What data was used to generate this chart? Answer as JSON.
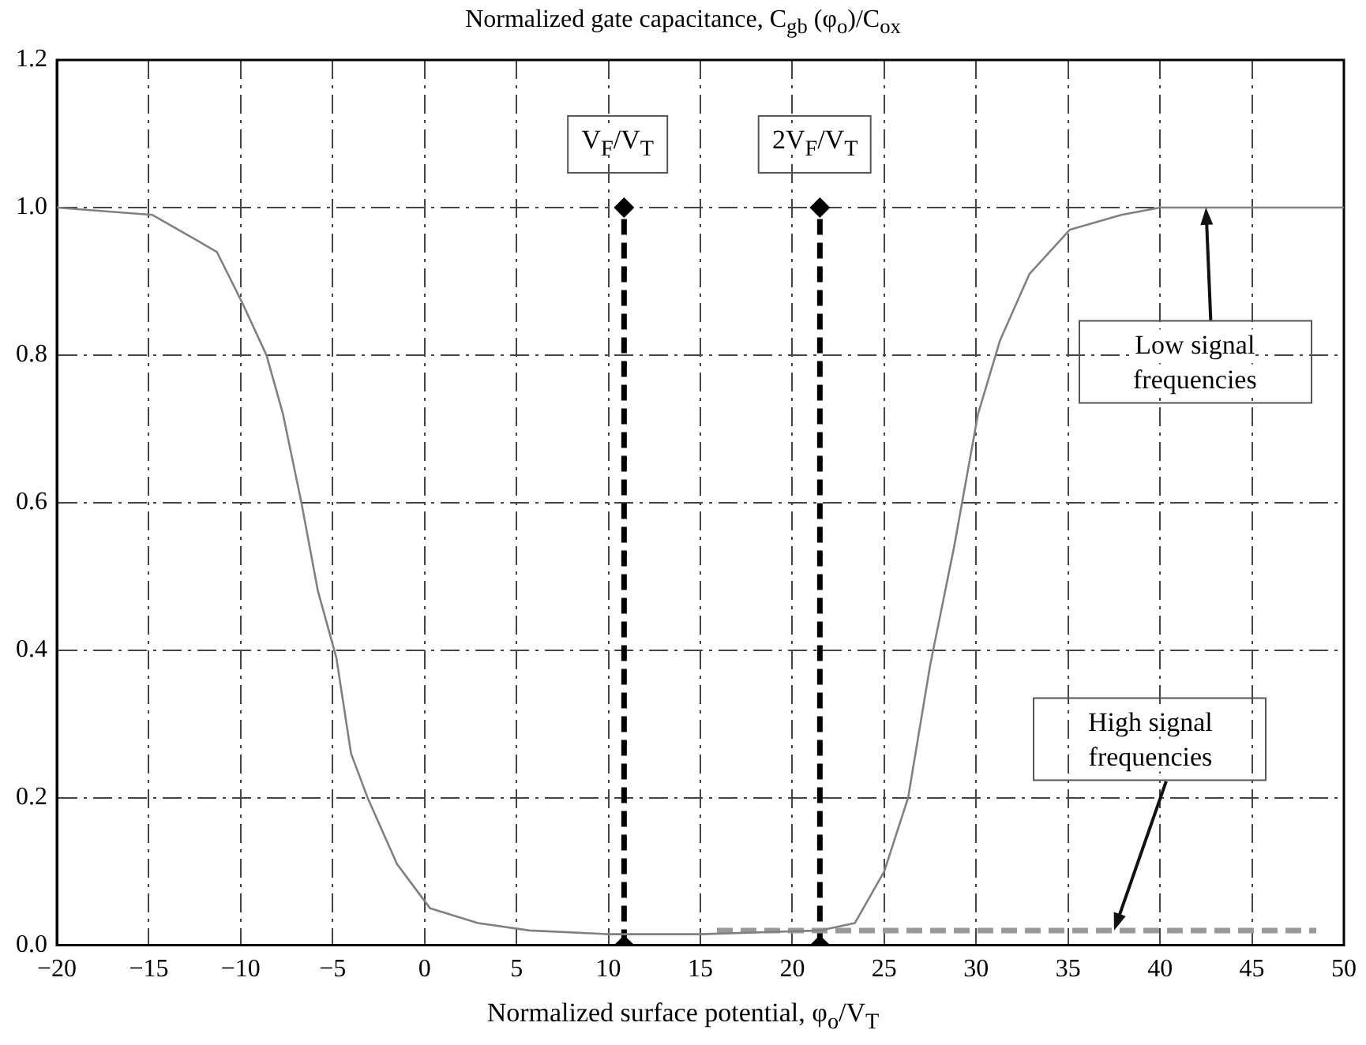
{
  "chart_data": {
    "type": "line",
    "xlabel": "Normalized surface potential, φ$_{o}$/V$_{T}$",
    "ylabel": "Normalized gate capacitance, C$_{gb}$ (φ$_{o}$)/C$_{ox}$",
    "xlim": [
      -20,
      50
    ],
    "xticks": [
      -20,
      -15,
      -10,
      -5,
      0,
      5,
      10,
      15,
      20,
      25,
      30,
      35,
      40,
      45,
      50
    ],
    "ylim": [
      0,
      1.2
    ],
    "yticks": [
      {
        "value": 0,
        "label": "0.0"
      },
      {
        "value": 0.2,
        "label": "0.2"
      },
      {
        "value": 0.4,
        "label": "0.4"
      },
      {
        "value": 0.6,
        "label": "0.6"
      },
      {
        "value": 0.8,
        "label": "0.8"
      },
      {
        "value": 1,
        "label": "1.0"
      },
      {
        "value": 1.2,
        "label": "1.2"
      }
    ],
    "grid": true,
    "legend": false,
    "series": [
      {
        "color": "#808080",
        "line_style": "solid",
        "marker": "none",
        "x": [
          -20,
          -14.8,
          -11.3,
          -9.9,
          -8.6,
          -7.7,
          -6.7,
          -5.8,
          -4.8,
          -4,
          -3.1,
          -1.5,
          0.3,
          2.9,
          5.7,
          10,
          15,
          21.5,
          23.4,
          25,
          26.3,
          27.5,
          28.8,
          30.1,
          31.3,
          32.9,
          35.1,
          37.9,
          40,
          50
        ],
        "values": [
          1,
          0.99,
          0.94,
          0.87,
          0.8,
          0.72,
          0.6,
          0.48,
          0.39,
          0.26,
          0.2,
          0.11,
          0.05,
          0.03,
          0.02,
          0.015,
          0.015,
          0.02,
          0.03,
          0.1,
          0.2,
          0.38,
          0.54,
          0.72,
          0.82,
          0.91,
          0.97,
          0.99,
          1,
          1
        ]
      },
      {
        "color": "#999999",
        "line_style": "dashed",
        "marker": "none",
        "x": [
          15.9,
          48.5
        ],
        "values": [
          0.02,
          0.02
        ]
      },
      {
        "color": "#000000",
        "line_style": "dashed",
        "marker": "diamond",
        "x": [
          10.85,
          10.85
        ],
        "values": [
          0,
          1
        ]
      },
      {
        "color": "#000000",
        "line_style": "dashed",
        "marker": "diamond",
        "x": [
          21.5,
          21.5
        ],
        "values": [
          0,
          1
        ]
      }
    ],
    "annotations": [
      {
        "text": "V$_{F}$/V$_{T}$",
        "x": 10.85,
        "y": 1
      },
      {
        "text": "2V$_{F}$/V$_{T}$",
        "x": 21.5,
        "y": 1
      },
      {
        "text": "Low signal frequencies",
        "x": 42.5,
        "y": 1
      },
      {
        "text": "High signal frequencies",
        "x": 37.5,
        "y": 0.02
      }
    ]
  }
}
